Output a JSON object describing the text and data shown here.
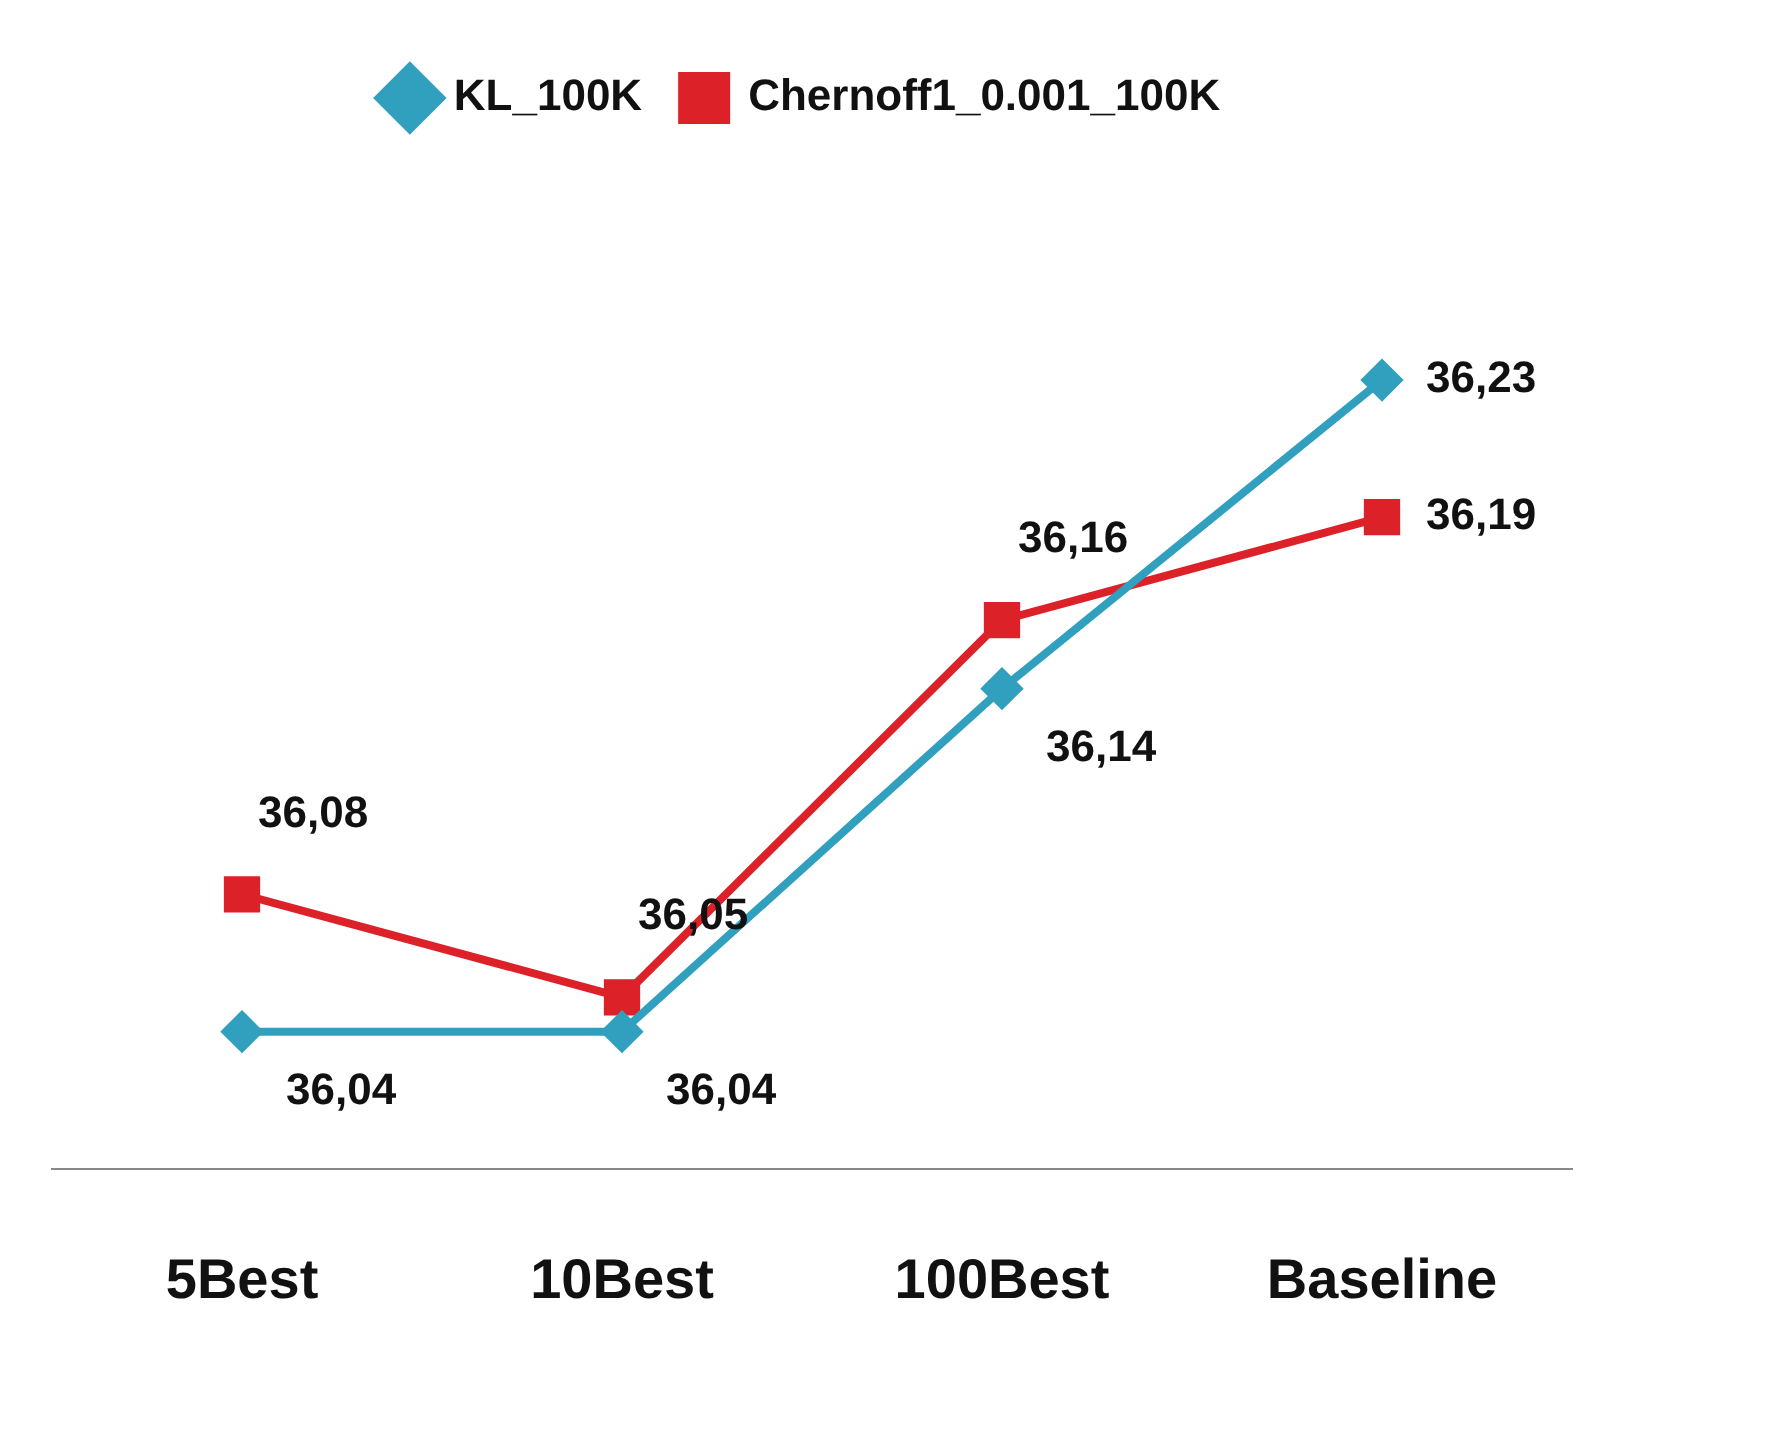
{
  "chart_data": {
    "type": "line",
    "categories": [
      "5Best",
      "10Best",
      "100Best",
      "Baseline"
    ],
    "series": [
      {
        "name": "KL_100K",
        "color": "#31a0bf",
        "marker": "diamond",
        "values": [
          36.04,
          36.04,
          36.14,
          36.23
        ],
        "value_labels": [
          "36,04",
          "36,04",
          "36,14",
          "36,23"
        ]
      },
      {
        "name": "Chernoff1_0.001_100K",
        "color": "#dd2128",
        "marker": "square",
        "values": [
          36.08,
          36.05,
          36.16,
          36.19
        ],
        "value_labels": [
          "36,08",
          "36,05",
          "36,16",
          "36,19"
        ]
      }
    ],
    "relative": false,
    "tick_labels": "x",
    "grid": false,
    "legend": "top",
    "line_style": "solid"
  }
}
